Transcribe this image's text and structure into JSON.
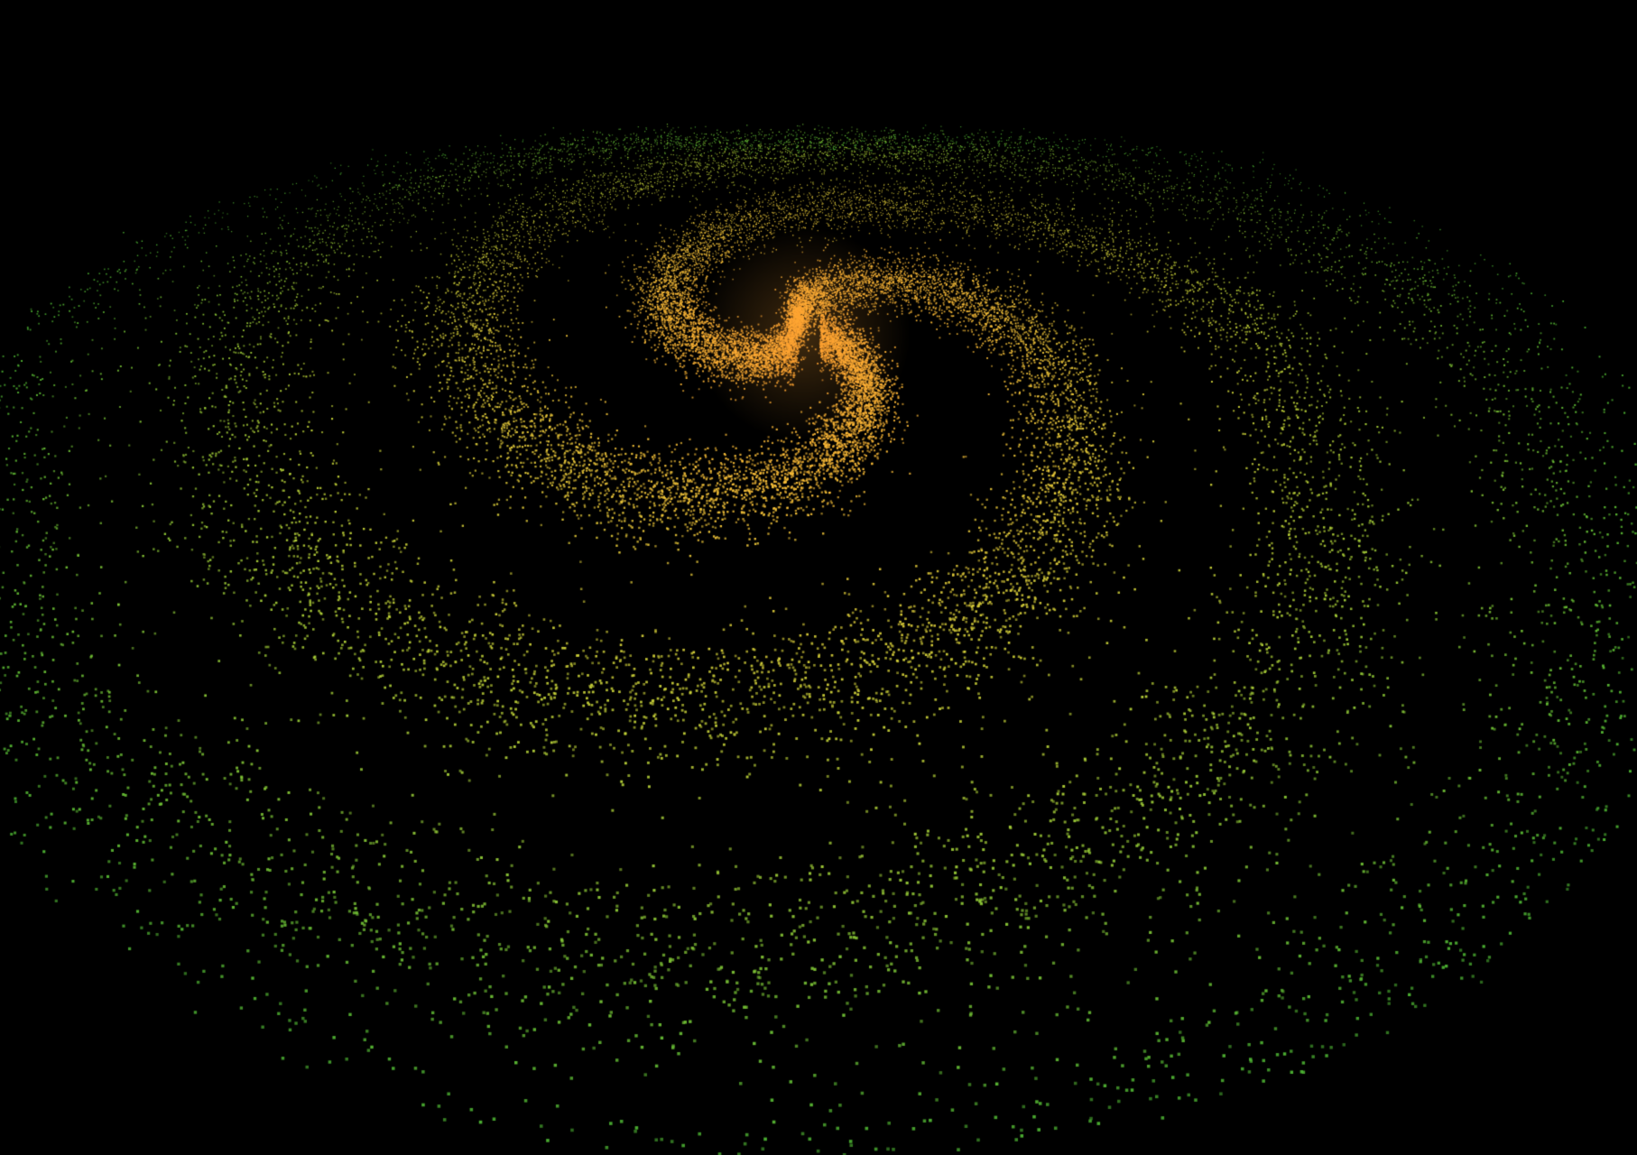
{
  "scene": {
    "background_color": "#000000",
    "subject": "spiral-galaxy-particles",
    "arms": 3,
    "palette": {
      "core": "#ff9b2e",
      "inner": "#ffc23a",
      "mid": "#c9d83a",
      "outer": "#4fb834"
    }
  }
}
